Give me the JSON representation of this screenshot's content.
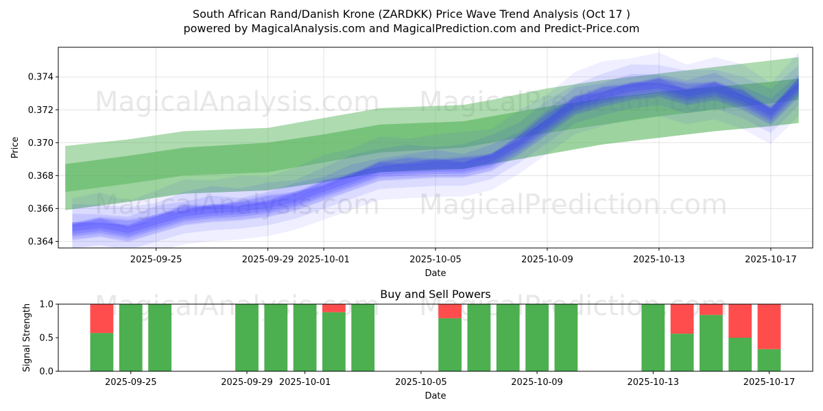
{
  "title_line1": "South African Rand/Danish Krone (ZARDKK) Price Wave Trend Analysis (Oct 17 )",
  "title_line2": "powered by MagicalAnalysis.com and MagicalPrediction.com and Predict-Price.com",
  "watermarks": [
    "MagicalAnalysis.com",
    "MagicalPrediction.com",
    "MagicalAnalysis.com",
    "MagicalPrediction.com",
    "MagicalAnalysis.com",
    "MagicalPrediction.com"
  ],
  "colors": {
    "trend": "#4caf50",
    "wave": "#3333ff",
    "buy": "#4caf50",
    "sell": "#ff4d4d"
  },
  "chart_data": [
    {
      "type": "area",
      "xlabel": "Date",
      "ylabel": "Price",
      "x_range": [
        "2025-09-21T12:00",
        "2025-10-18T12:00"
      ],
      "ylim": [
        0.3636,
        0.3758
      ],
      "x_ticks": [
        "2025-09-25",
        "2025-09-29",
        "2025-10-01",
        "2025-10-05",
        "2025-10-09",
        "2025-10-13",
        "2025-10-17"
      ],
      "y_ticks": [
        "0.364",
        "0.366",
        "0.368",
        "0.370",
        "0.372",
        "0.374"
      ],
      "grid": true,
      "series": [
        {
          "kind": "trend",
          "bands": [
            {
              "x": [
                "2025-09-21T18:00",
                "2025-09-24",
                "2025-09-26",
                "2025-09-29",
                "2025-10-01",
                "2025-10-03",
                "2025-10-06",
                "2025-10-07",
                "2025-10-09",
                "2025-10-11",
                "2025-10-13",
                "2025-10-15",
                "2025-10-17",
                "2025-10-18"
              ],
              "upper": [
                0.3698,
                0.3702,
                0.3707,
                0.3709,
                0.3715,
                0.3721,
                0.3723,
                0.3726,
                0.3733,
                0.3738,
                0.3742,
                0.3746,
                0.375,
                0.3752
              ],
              "lower": [
                0.367,
                0.3675,
                0.368,
                0.3682,
                0.3688,
                0.3694,
                0.3697,
                0.37,
                0.3706,
                0.3711,
                0.3716,
                0.372,
                0.3724,
                0.3726
              ]
            },
            {
              "x": [
                "2025-09-21T18:00",
                "2025-09-24",
                "2025-09-26",
                "2025-09-29",
                "2025-10-01",
                "2025-10-03",
                "2025-10-06",
                "2025-10-07",
                "2025-10-09",
                "2025-10-11",
                "2025-10-13",
                "2025-10-15",
                "2025-10-17",
                "2025-10-18"
              ],
              "upper": [
                0.3687,
                0.3692,
                0.3697,
                0.37,
                0.3705,
                0.3711,
                0.3713,
                0.3716,
                0.3722,
                0.3727,
                0.3731,
                0.3734,
                0.3737,
                0.3739
              ],
              "lower": [
                0.3659,
                0.3664,
                0.3669,
                0.3671,
                0.3676,
                0.3682,
                0.3684,
                0.3687,
                0.3693,
                0.3699,
                0.3703,
                0.3707,
                0.371,
                0.3712
              ]
            }
          ]
        },
        {
          "kind": "wave",
          "x": [
            "2025-09-22",
            "2025-09-23",
            "2025-09-24",
            "2025-09-25",
            "2025-09-26",
            "2025-09-27",
            "2025-09-28",
            "2025-09-29",
            "2025-09-30",
            "2025-10-01",
            "2025-10-02",
            "2025-10-03",
            "2025-10-04",
            "2025-10-05",
            "2025-10-06",
            "2025-10-07",
            "2025-10-08",
            "2025-10-09",
            "2025-10-10",
            "2025-10-11",
            "2025-10-12",
            "2025-10-13",
            "2025-10-14",
            "2025-10-15",
            "2025-10-16",
            "2025-10-17",
            "2025-10-18"
          ],
          "center": [
            0.3648,
            0.365,
            0.3647,
            0.3652,
            0.3657,
            0.3659,
            0.366,
            0.3662,
            0.3666,
            0.3672,
            0.3678,
            0.3684,
            0.3685,
            0.3686,
            0.3686,
            0.369,
            0.37,
            0.3712,
            0.3724,
            0.3729,
            0.3733,
            0.3735,
            0.373,
            0.3733,
            0.3727,
            0.3718,
            0.3735
          ]
        }
      ]
    },
    {
      "type": "bar",
      "title": "Buy and Sell Powers",
      "xlabel": "Date",
      "ylabel": "Signal Strength",
      "ylim": [
        0.0,
        1.0
      ],
      "y_ticks": [
        "0.0",
        "0.5",
        "1.0"
      ],
      "x_ticks": [
        "2025-09-25",
        "2025-09-29",
        "2025-10-01",
        "2025-10-05",
        "2025-10-09",
        "2025-10-13",
        "2025-10-17"
      ],
      "categories": [
        "2025-09-24",
        "2025-09-25",
        "2025-09-26",
        "2025-09-29",
        "2025-09-30",
        "2025-10-01",
        "2025-10-02",
        "2025-10-03",
        "2025-10-06",
        "2025-10-07",
        "2025-10-08",
        "2025-10-09",
        "2025-10-10",
        "2025-10-13",
        "2025-10-14",
        "2025-10-15",
        "2025-10-16",
        "2025-10-17"
      ],
      "series": [
        {
          "name": "Buy",
          "values": [
            0.57,
            1.0,
            1.0,
            1.0,
            1.0,
            1.0,
            0.88,
            1.0,
            0.79,
            1.0,
            1.0,
            1.0,
            1.0,
            1.0,
            0.56,
            0.84,
            0.5,
            0.33
          ]
        },
        {
          "name": "Sell",
          "values": [
            0.43,
            0.0,
            0.0,
            0.0,
            0.0,
            0.0,
            0.12,
            0.0,
            0.21,
            0.0,
            0.0,
            0.0,
            0.0,
            0.0,
            0.44,
            0.16,
            0.5,
            0.67
          ]
        }
      ]
    }
  ]
}
